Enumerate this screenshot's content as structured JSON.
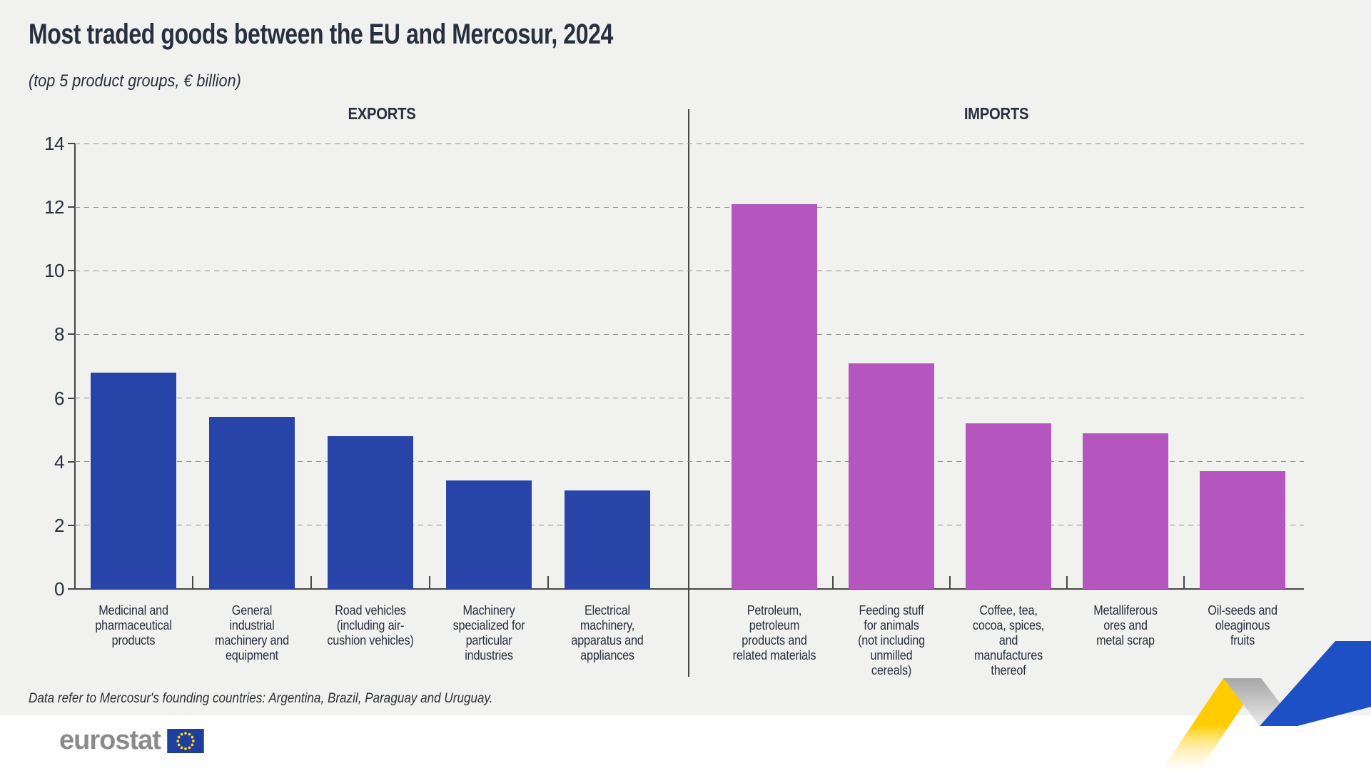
{
  "title": "Most traded goods between the EU and Mercosur, 2024",
  "subtitle": "(top 5 product groups, € billion)",
  "footnote": "Data refer to Mercosur's founding countries: Argentina, Brazil, Paraguay and Uruguay.",
  "logo": {
    "text": "eurostat"
  },
  "colors": {
    "background": "#f1f1ef",
    "footer_background": "#ffffff",
    "text": "#27303f",
    "export_bar": "#2844a8",
    "import_bar": "#b456be",
    "gridline": "#8f8f8f",
    "axis": "#474747",
    "logo_gray": "#8b8b8b",
    "flag_blue": "#1e3f9e",
    "flag_stars": "#ffd617",
    "ribbon_yellow": "#ffcc00",
    "ribbon_gray": "#b3b3b3",
    "ribbon_blue": "#1d50c4"
  },
  "chart_data": {
    "type": "bar",
    "title": "Most traded goods between the EU and Mercosur, 2024",
    "subtitle": "(top 5 product groups, € billion)",
    "unit": "€ billion",
    "ylim": [
      0,
      14
    ],
    "yticks": [
      0,
      2,
      4,
      6,
      8,
      10,
      12,
      14
    ],
    "grid": "horizontal dashed",
    "legend_position": "none",
    "panels": [
      {
        "label": "EXPORTS",
        "color": "#2844a8",
        "categories": [
          "Medicinal and\npharmaceutical\nproducts",
          "General\nindustrial\nmachinery and\nequipment",
          "Road vehicles\n(including air-\ncushion vehicles)",
          "Machinery\nspecialized for\nparticular\nindustries",
          "Electrical\nmachinery,\napparatus and\nappliances"
        ],
        "values": [
          6.8,
          5.4,
          4.8,
          3.4,
          3.1
        ]
      },
      {
        "label": "IMPORTS",
        "color": "#b456be",
        "categories": [
          "Petroleum,\npetroleum\nproducts and\nrelated materials",
          "Feeding stuff\nfor animals\n(not including\nunmilled\ncereals)",
          "Coffee, tea,\ncocoa, spices,\nand\nmanufactures\nthereof",
          "Metalliferous\nores and\nmetal scrap",
          "Oil-seeds and\noleaginous\nfruits"
        ],
        "values": [
          12.1,
          7.1,
          5.2,
          4.9,
          3.7
        ]
      }
    ]
  }
}
